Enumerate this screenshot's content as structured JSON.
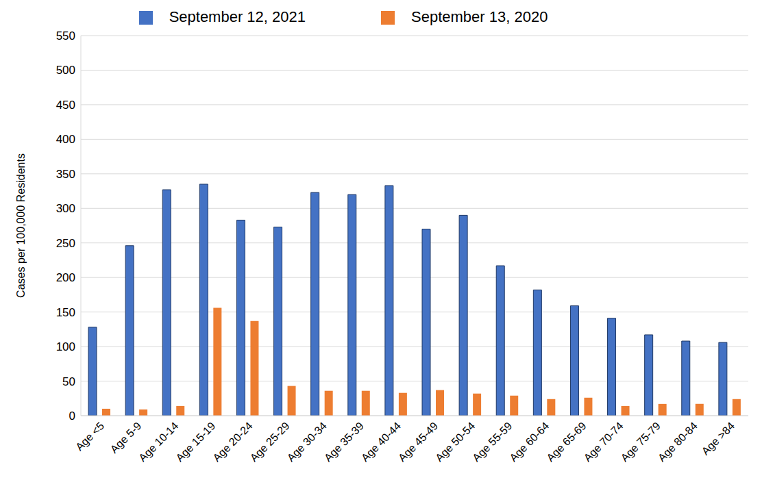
{
  "chart_data": {
    "type": "bar",
    "y_label": "Cases per 100,000 Residents",
    "categories": [
      "Age <5",
      "Age 5-9",
      "Age 10-14",
      "Age 15-19",
      "Age 20-24",
      "Age 25-29",
      "Age 30-34",
      "Age 35-39",
      "Age 40-44",
      "Age 45-49",
      "Age 50-54",
      "Age 55-59",
      "Age 60-64",
      "Age 65-69",
      "Age 70-74",
      "Age 75-79",
      "Age 80-84",
      "Age >84"
    ],
    "series": [
      {
        "name": "September 12, 2021",
        "color": "#4472c4",
        "values": [
          128,
          246,
          327,
          335,
          283,
          273,
          323,
          320,
          333,
          270,
          290,
          217,
          182,
          159,
          141,
          117,
          108,
          106
        ]
      },
      {
        "name": "September 13, 2020",
        "color": "#ed7d31",
        "values": [
          10,
          9,
          14,
          156,
          137,
          43,
          36,
          36,
          33,
          37,
          32,
          29,
          24,
          26,
          14,
          17,
          17,
          24
        ]
      }
    ],
    "ylim": [
      0,
      550
    ],
    "yticks": [
      0,
      50,
      100,
      150,
      200,
      250,
      300,
      350,
      400,
      450,
      500,
      550
    ],
    "grid": true,
    "legend": "top"
  }
}
